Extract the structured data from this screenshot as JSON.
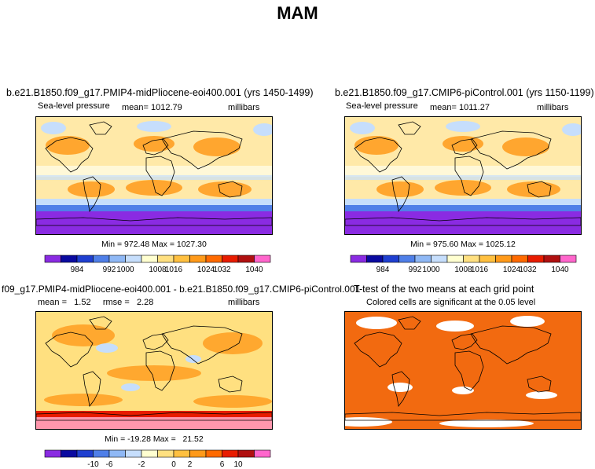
{
  "title": "MAM",
  "panels": [
    {
      "id": "p1",
      "title": "b.e21.B1850.f09_g17.PMIP4-midPliocene-eoi400.001 (yrs 1450-1499)",
      "variable": "Sea-level pressure",
      "stat": "mean= 1012.79",
      "units": "millibars",
      "minmax": "Min = 972.48 Max = 1027.30",
      "map_style": "slp",
      "legend": {
        "colors": [
          "#8a2be2",
          "#0a0aa0",
          "#1f3fd0",
          "#4f7fe8",
          "#8fb8f5",
          "#c6defc",
          "#ffffd0",
          "#ffe080",
          "#ffc040",
          "#ff9a1a",
          "#ff6a00",
          "#e81c00",
          "#b01010",
          "#ff66cc"
        ],
        "labels": [
          "984",
          "992",
          "1000",
          "1008",
          "1016",
          "1024",
          "1032",
          "1040"
        ]
      }
    },
    {
      "id": "p2",
      "title": "b.e21.B1850.f09_g17.CMIP6-piControl.001 (yrs 1150-1199)",
      "variable": "Sea-level pressure",
      "stat": "mean= 1011.27",
      "units": "millibars",
      "minmax": "Min = 975.60 Max = 1025.12",
      "map_style": "slp",
      "legend": {
        "colors": [
          "#8a2be2",
          "#0a0aa0",
          "#1f3fd0",
          "#4f7fe8",
          "#8fb8f5",
          "#c6defc",
          "#ffffd0",
          "#ffe080",
          "#ffc040",
          "#ff9a1a",
          "#ff6a00",
          "#e81c00",
          "#b01010",
          "#ff66cc"
        ],
        "labels": [
          "984",
          "992",
          "1000",
          "1008",
          "1016",
          "1024",
          "1032",
          "1040"
        ]
      }
    },
    {
      "id": "p3",
      "title": "f09_g17.PMIP4-midPliocene-eoi400.001 - b.e21.B1850.f09_g17.CMIP6-piControl.001",
      "stat": "mean =   1.52     rmse =   2.28",
      "units": "millibars",
      "minmax": "Min = -19.28 Max =   21.52",
      "map_style": "diff",
      "legend": {
        "colors": [
          "#8a2be2",
          "#0a0aa0",
          "#1f3fd0",
          "#4f7fe8",
          "#8fb8f5",
          "#c6defc",
          "#ffffd0",
          "#ffe080",
          "#ffc040",
          "#ff9a1a",
          "#ff6a00",
          "#e81c00",
          "#b01010",
          "#ff66cc"
        ],
        "labels": [
          "-10",
          "-6",
          "-2",
          "0",
          "2",
          "6",
          "10"
        ]
      }
    },
    {
      "id": "p4",
      "title": "T-test of the two means at each grid point",
      "subtitle": "Colored cells are significant at the 0.05 level",
      "map_style": "ttest"
    }
  ],
  "colors": {
    "purple": "#8a2be2",
    "blue": "#4f7fe8",
    "light_blue": "#c6defc",
    "yellow": "#ffe080",
    "orange": "#ff9a1a",
    "dark_orange": "#ff6a00",
    "significance": "#f26a10"
  }
}
